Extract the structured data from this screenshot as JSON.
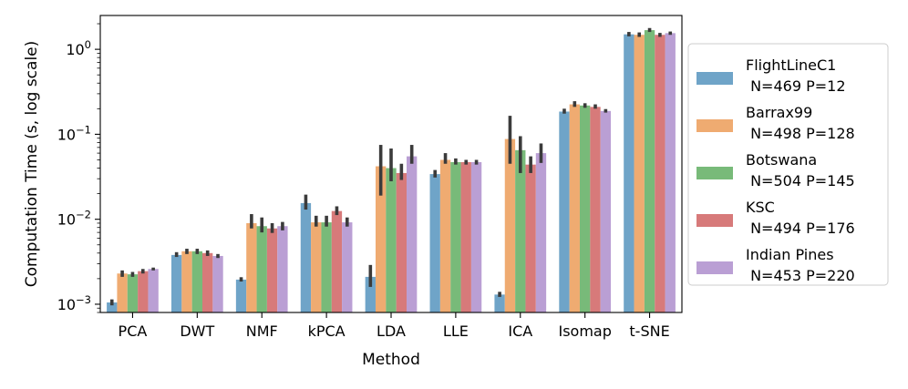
{
  "chart_data": {
    "type": "bar",
    "title": "",
    "xlabel": "Method",
    "ylabel": "Computation Time (s, log scale)",
    "yscale": "log",
    "ylim": [
      0.0008,
      2.5
    ],
    "yticks": [
      {
        "value": 0.001,
        "base": "10",
        "exp": "−3"
      },
      {
        "value": 0.01,
        "base": "10",
        "exp": "−2"
      },
      {
        "value": 0.1,
        "base": "10",
        "exp": "−1"
      },
      {
        "value": 1,
        "base": "10",
        "exp": "0"
      }
    ],
    "categories": [
      "PCA",
      "DWT",
      "NMF",
      "kPCA",
      "LDA",
      "LLE",
      "ICA",
      "Isomap",
      "t-SNE"
    ],
    "legend_position": "right",
    "series": [
      {
        "name": "FlightLineC1",
        "detail": "N=469 P=12",
        "color": "#5f9ac2",
        "values": [
          0.00105,
          0.0038,
          0.00195,
          0.0155,
          0.0021,
          0.034,
          0.0013,
          0.185,
          1.5
        ],
        "err_low": [
          0.00097,
          0.0036,
          0.00185,
          0.013,
          0.0016,
          0.031,
          0.00122,
          0.175,
          1.42
        ],
        "err_high": [
          0.00114,
          0.0041,
          0.00208,
          0.0195,
          0.0029,
          0.038,
          0.0014,
          0.2,
          1.6
        ]
      },
      {
        "name": "Barrax99",
        "detail": "N=498 P=128",
        "color": "#eda262",
        "values": [
          0.0023,
          0.0042,
          0.009,
          0.0092,
          0.042,
          0.05,
          0.088,
          0.225,
          1.48
        ],
        "err_low": [
          0.0021,
          0.0039,
          0.0078,
          0.0082,
          0.019,
          0.045,
          0.045,
          0.21,
          1.4
        ],
        "err_high": [
          0.0025,
          0.0045,
          0.0115,
          0.011,
          0.075,
          0.06,
          0.165,
          0.245,
          1.58
        ]
      },
      {
        "name": "Botswana",
        "detail": "N=504 P=145",
        "color": "#69b36a",
        "values": [
          0.00225,
          0.0042,
          0.0083,
          0.0092,
          0.04,
          0.047,
          0.065,
          0.218,
          1.68
        ],
        "err_low": [
          0.0021,
          0.0039,
          0.007,
          0.0082,
          0.028,
          0.044,
          0.035,
          0.205,
          1.6
        ],
        "err_high": [
          0.0024,
          0.0045,
          0.0105,
          0.011,
          0.068,
          0.052,
          0.095,
          0.232,
          1.78
        ]
      },
      {
        "name": "KSC",
        "detail": "N=494 P=176",
        "color": "#d36c6c",
        "values": [
          0.00245,
          0.004,
          0.0078,
          0.0125,
          0.035,
          0.047,
          0.044,
          0.21,
          1.48
        ],
        "err_low": [
          0.0023,
          0.0037,
          0.0069,
          0.0112,
          0.029,
          0.044,
          0.035,
          0.2,
          1.4
        ],
        "err_high": [
          0.0026,
          0.0043,
          0.009,
          0.0142,
          0.045,
          0.05,
          0.055,
          0.225,
          1.56
        ]
      },
      {
        "name": "Indian Pines",
        "detail": "N=453 P=220",
        "color": "#b295cf",
        "values": [
          0.0026,
          0.0037,
          0.0083,
          0.0092,
          0.055,
          0.047,
          0.06,
          0.188,
          1.55
        ],
        "err_low": [
          0.0025,
          0.0035,
          0.0074,
          0.0082,
          0.045,
          0.044,
          0.046,
          0.18,
          1.48
        ],
        "err_high": [
          0.0027,
          0.0039,
          0.0093,
          0.0105,
          0.075,
          0.05,
          0.078,
          0.198,
          1.62
        ]
      }
    ]
  }
}
